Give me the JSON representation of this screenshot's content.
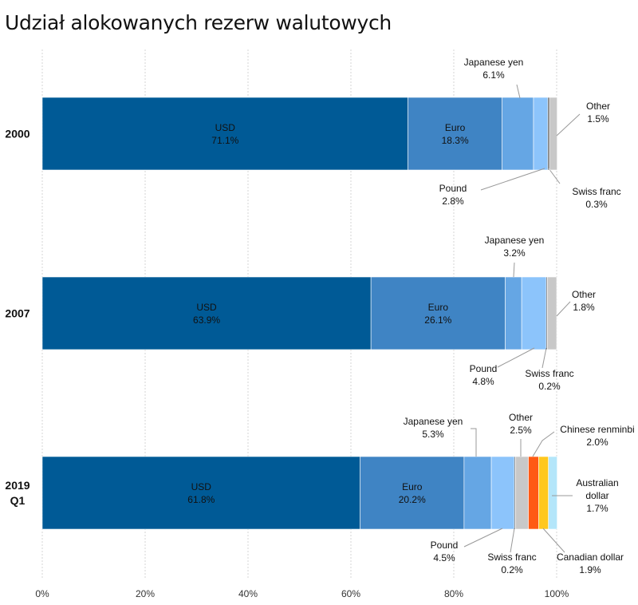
{
  "chart_data": {
    "type": "bar",
    "orientation": "horizontal",
    "stacked": true,
    "title": "Udział alokowanych rezerw walutowych",
    "xlim": [
      0,
      100
    ],
    "x_ticks": [
      "0%",
      "20%",
      "40%",
      "60%",
      "80%",
      "100%"
    ],
    "grid": true,
    "colors": {
      "USD": "#005a96",
      "Euro": "#3f84c4",
      "Japanese yen": "#65a6e4",
      "Pound": "#8cc4fb",
      "Swiss franc": "#4a4a4a",
      "Other": "#c8c8c8",
      "Chinese renminbi": "#ff5a14",
      "Canadian dollar": "#ffc81e",
      "Australian dollar": "#b4e6fa"
    },
    "categories": [
      {
        "label": [
          "2000"
        ],
        "segments": [
          {
            "name": "USD",
            "value": 71.1,
            "label": "71.1%"
          },
          {
            "name": "Euro",
            "value": 18.3,
            "label": "18.3%"
          },
          {
            "name": "Japanese yen",
            "value": 6.1,
            "label": "6.1%"
          },
          {
            "name": "Pound",
            "value": 2.8,
            "label": "2.8%"
          },
          {
            "name": "Swiss franc",
            "value": 0.3,
            "label": "0.3%"
          },
          {
            "name": "Other",
            "value": 1.5,
            "label": "1.5%"
          }
        ]
      },
      {
        "label": [
          "2007"
        ],
        "segments": [
          {
            "name": "USD",
            "value": 63.9,
            "label": "63.9%"
          },
          {
            "name": "Euro",
            "value": 26.1,
            "label": "26.1%"
          },
          {
            "name": "Japanese yen",
            "value": 3.2,
            "label": "3.2%"
          },
          {
            "name": "Pound",
            "value": 4.8,
            "label": "4.8%"
          },
          {
            "name": "Swiss franc",
            "value": 0.2,
            "label": "0.2%"
          },
          {
            "name": "Other",
            "value": 1.8,
            "label": "1.8%"
          }
        ]
      },
      {
        "label": [
          "2019",
          "Q1"
        ],
        "segments": [
          {
            "name": "USD",
            "value": 61.8,
            "label": "61.8%"
          },
          {
            "name": "Euro",
            "value": 20.2,
            "label": "20.2%"
          },
          {
            "name": "Japanese yen",
            "value": 5.3,
            "label": "5.3%"
          },
          {
            "name": "Pound",
            "value": 4.5,
            "label": "4.5%"
          },
          {
            "name": "Swiss franc",
            "value": 0.2,
            "label": "0.2%"
          },
          {
            "name": "Other",
            "value": 2.5,
            "label": "2.5%"
          },
          {
            "name": "Chinese renminbi",
            "value": 2.0,
            "label": "2.0%"
          },
          {
            "name": "Canadian dollar",
            "value": 1.9,
            "label": "1.9%"
          },
          {
            "name": "Australian dollar",
            "value": 1.7,
            "label": "1.7%"
          }
        ]
      }
    ]
  }
}
